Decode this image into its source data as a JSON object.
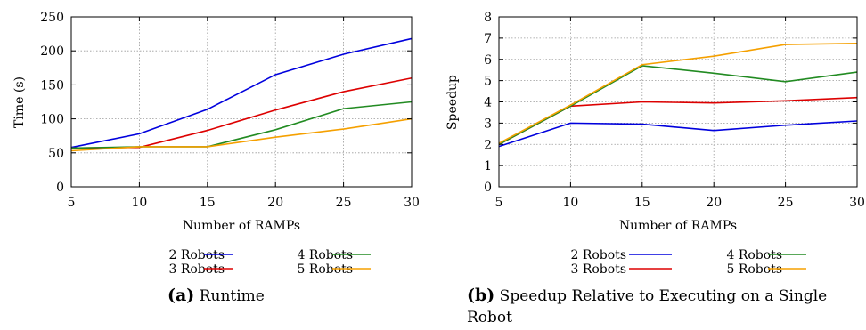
{
  "chart_data": [
    {
      "type": "line",
      "caption_label": "(a)",
      "caption_text": "Runtime",
      "xlabel": "Number of RAMPs",
      "ylabel": "Time (s)",
      "xlim": [
        5,
        30
      ],
      "ylim": [
        0,
        250
      ],
      "xticks": [
        5,
        10,
        15,
        20,
        25,
        30
      ],
      "yticks": [
        0,
        50,
        100,
        150,
        200,
        250
      ],
      "grid": true,
      "legend_position": "below",
      "series": [
        {
          "name": "2 Robots",
          "color": "#0000dd",
          "x": [
            5,
            10,
            15,
            20,
            25,
            30
          ],
          "y": [
            58,
            78,
            114,
            165,
            195,
            218
          ]
        },
        {
          "name": "3 Robots",
          "color": "#dd0000",
          "x": [
            5,
            10,
            15,
            20,
            25,
            30
          ],
          "y": [
            57,
            58,
            83,
            113,
            140,
            160
          ]
        },
        {
          "name": "4 Robots",
          "color": "#228b22",
          "x": [
            5,
            10,
            15,
            20,
            25,
            30
          ],
          "y": [
            57,
            59,
            59,
            84,
            115,
            125
          ]
        },
        {
          "name": "5 Robots",
          "color": "#f5a000",
          "x": [
            5,
            10,
            15,
            20,
            25,
            30
          ],
          "y": [
            53,
            59,
            59,
            73,
            85,
            100
          ]
        }
      ]
    },
    {
      "type": "line",
      "caption_label": "(b)",
      "caption_text": "Speedup Relative to Executing on a Single Robot",
      "xlabel": "Number of RAMPs",
      "ylabel": "Speedup",
      "xlim": [
        5,
        30
      ],
      "ylim": [
        0,
        8
      ],
      "xticks": [
        5,
        10,
        15,
        20,
        25,
        30
      ],
      "yticks": [
        0,
        1,
        2,
        3,
        4,
        5,
        6,
        7,
        8
      ],
      "grid": true,
      "legend_position": "below",
      "series": [
        {
          "name": "2 Robots",
          "color": "#0000dd",
          "x": [
            5,
            10,
            15,
            20,
            25,
            30
          ],
          "y": [
            1.9,
            3.0,
            2.95,
            2.65,
            2.9,
            3.1
          ]
        },
        {
          "name": "3 Robots",
          "color": "#dd0000",
          "x": [
            5,
            10,
            15,
            20,
            25,
            30
          ],
          "y": [
            2.0,
            3.8,
            4.0,
            3.95,
            4.05,
            4.2
          ]
        },
        {
          "name": "4 Robots",
          "color": "#228b22",
          "x": [
            5,
            10,
            15,
            20,
            25,
            30
          ],
          "y": [
            2.0,
            3.8,
            5.7,
            5.35,
            4.95,
            5.4
          ]
        },
        {
          "name": "5 Robots",
          "color": "#f5a000",
          "x": [
            5,
            10,
            15,
            20,
            25,
            30
          ],
          "y": [
            2.05,
            3.85,
            5.75,
            6.15,
            6.7,
            6.75
          ]
        }
      ]
    }
  ]
}
